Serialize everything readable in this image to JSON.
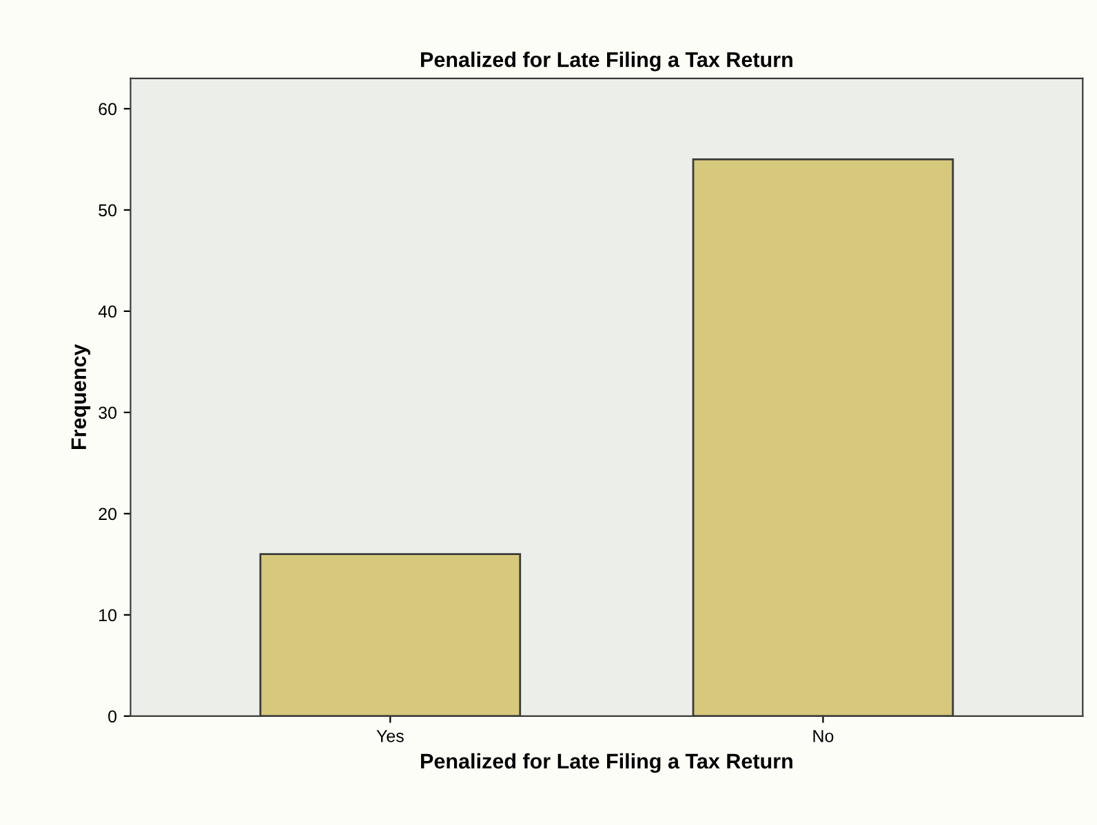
{
  "chart_data": {
    "type": "bar",
    "title": "Penalized for Late Filing a Tax Return",
    "xlabel": "Penalized for Late Filing a Tax Return",
    "ylabel": "Frequency",
    "categories": [
      "Yes",
      "No"
    ],
    "values": [
      16,
      55
    ],
    "color": "#d6c97c",
    "ylim": [
      0,
      63
    ],
    "yticks": [
      0,
      10,
      20,
      30,
      40,
      50,
      60
    ],
    "grid": false,
    "legend": false
  }
}
